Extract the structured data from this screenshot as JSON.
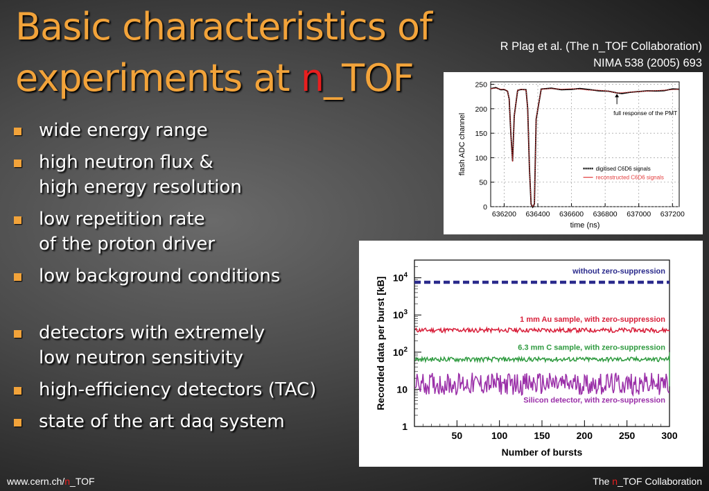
{
  "slide": {
    "title_line1": "Basic characteristics of",
    "title_line2_prefix": "experiments at ",
    "title_line2_accent": "n",
    "title_line2_suffix": "_TOF",
    "citation_line1": "R Plag et al. (The n_TOF Collaboration)",
    "citation_line2": "NIMA 538 (2005) 693",
    "bullets": [
      {
        "lines": [
          "wide energy range"
        ]
      },
      {
        "lines": [
          "high neutron flux &",
          "high energy resolution"
        ]
      },
      {
        "lines": [
          "low repetition rate",
          "of the proton driver"
        ]
      },
      {
        "lines": [
          "low background conditions"
        ]
      },
      {
        "lines": [
          "detectors with extremely",
          "low neutron sensitivity"
        ]
      },
      {
        "lines": [
          "high-efficiency detectors (TAC)"
        ]
      },
      {
        "lines": [
          "state of the art daq system"
        ]
      }
    ],
    "footer_left_prefix": "www.cern.ch/",
    "footer_left_accent": "n",
    "footer_left_suffix": "_TOF",
    "footer_right_prefix": "The ",
    "footer_right_accent": "n",
    "footer_right_suffix": "_TOF Collaboration",
    "colors": {
      "title": "#f2a33a",
      "accent": "#e81f1f",
      "bullet": "#f2a33a"
    }
  },
  "chart_data": [
    {
      "type": "line",
      "xlabel": "time (ns)",
      "ylabel": "flash ADC channel",
      "xlim": [
        636120,
        637240
      ],
      "ylim": [
        0,
        255
      ],
      "xticks": [
        636200,
        636400,
        636600,
        636800,
        637000,
        637200
      ],
      "xtick_labels": [
        "636200",
        "636400",
        "636600",
        "636800",
        "637000",
        "637200"
      ],
      "yticks": [
        0,
        50,
        100,
        150,
        200,
        250
      ],
      "annotation": "full response of the PMT",
      "annotation_target": {
        "x": 636870,
        "y": 232
      },
      "legend_position": "right",
      "series": [
        {
          "name": "digitised C6D6 signals",
          "color": "#000000",
          "x": [
            636120,
            636150,
            636180,
            636200,
            636220,
            636230,
            636240,
            636250,
            636260,
            636280,
            636300,
            636330,
            636340,
            636350,
            636360,
            636370,
            636380,
            636390,
            636420,
            636480,
            636540,
            636600,
            636650,
            636700,
            636760,
            636820,
            636870,
            636900,
            636950,
            637000,
            637050,
            637100,
            637150,
            637200,
            637240
          ],
          "y": [
            241,
            243,
            240,
            240,
            236,
            220,
            150,
            92,
            185,
            238,
            240,
            238,
            200,
            80,
            5,
            0,
            5,
            180,
            240,
            242,
            240,
            241,
            240,
            238,
            238,
            236,
            231,
            232,
            234,
            235,
            236,
            237,
            238,
            239,
            240
          ]
        },
        {
          "name": "reconstructed C6D6 signals",
          "color": "#e33b3b",
          "x": [
            636120,
            636150,
            636180,
            636200,
            636220,
            636230,
            636240,
            636250,
            636260,
            636280,
            636300,
            636330,
            636340,
            636350,
            636360,
            636370,
            636380,
            636390,
            636420,
            636480,
            636540,
            636600,
            636650,
            636700,
            636760,
            636820,
            636870,
            636900,
            636950,
            637000,
            637050,
            637100,
            637150,
            637200,
            637240
          ],
          "y": [
            241,
            242,
            240,
            240,
            236,
            220,
            150,
            92,
            185,
            238,
            240,
            238,
            200,
            80,
            5,
            0,
            5,
            180,
            240,
            241,
            240,
            241,
            240,
            238,
            238,
            236,
            232,
            233,
            234,
            235,
            236,
            237,
            238,
            239,
            240
          ]
        }
      ]
    },
    {
      "type": "line",
      "xlabel": "Number of bursts",
      "ylabel": "Recorded data per burst [kB]",
      "yscale": "log",
      "xlim": [
        0,
        300
      ],
      "ylim": [
        1,
        30000
      ],
      "xticks": [
        50,
        100,
        150,
        200,
        250,
        300
      ],
      "xtick_labels": [
        "50",
        "100",
        "150",
        "200",
        "250",
        "300"
      ],
      "yticks": [
        1,
        10,
        100,
        1000,
        10000
      ],
      "series": [
        {
          "name": "without zero-suppression",
          "color": "#2a2a8c",
          "style": "dashed",
          "x": [
            0,
            300
          ],
          "y": [
            7600,
            7600
          ]
        },
        {
          "name": "1 mm Au sample, with zero-suppression",
          "color": "#d81f3a",
          "x": [
            0,
            300
          ],
          "y": [
            390,
            390
          ],
          "noise": 0.12
        },
        {
          "name": "6.3 mm C sample, with zero-suppression",
          "color": "#2e9a3f",
          "x": [
            0,
            300
          ],
          "y": [
            64,
            64
          ],
          "noise": 0.12
        },
        {
          "name": "Silicon detector, with zero-suppression",
          "color": "#9a2fa8",
          "x": [
            0,
            300
          ],
          "y": [
            14,
            14
          ],
          "noise": 0.6
        }
      ]
    }
  ]
}
